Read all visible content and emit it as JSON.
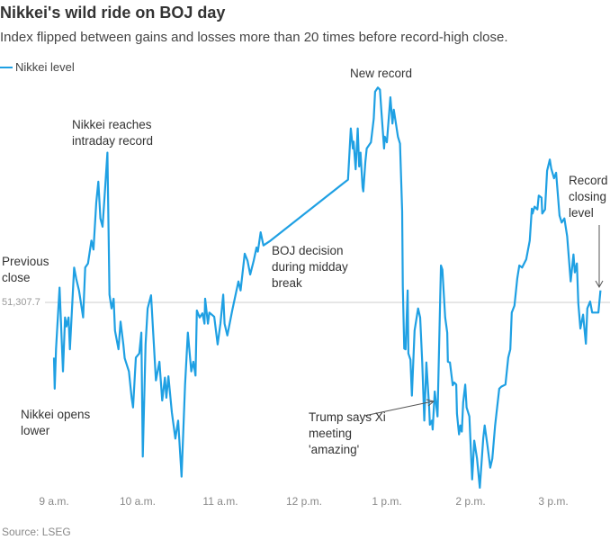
{
  "header": {
    "title": "Nikkei's wild ride on BOJ day",
    "subtitle": "Index flipped between gains and losses more than 20 times before record-high close."
  },
  "legend": {
    "label": "Nikkei level",
    "color": "#1fa0e3"
  },
  "footer": {
    "source": "Source: LSEG"
  },
  "annotations": {
    "new_record": [
      "New record"
    ],
    "intraday_record": [
      "Nikkei reaches",
      "intraday record"
    ],
    "previous_close": [
      "Previous",
      "close"
    ],
    "opens_lower": [
      "Nikkei opens",
      "lower"
    ],
    "boj_decision": [
      "BOJ decision",
      "during midday",
      "break"
    ],
    "trump_xi": [
      "Trump says Xi",
      "meeting",
      "'amazing'"
    ],
    "record_close": [
      "Record",
      "closing",
      "level"
    ]
  },
  "chart_data": {
    "type": "line",
    "title": "Nikkei's wild ride on BOJ day",
    "subtitle": "Index flipped between gains and losses more than 20 times before record-high close.",
    "xlabel": "",
    "ylabel": "",
    "x_ticks": [
      "9 a.m.",
      "10 a.m.",
      "11 a.m.",
      "12 p.m.",
      "1 p.m.",
      "2 p.m.",
      "3 p.m."
    ],
    "x_range": [
      "9:00",
      "15:35"
    ],
    "ylim": [
      51000,
      51700
    ],
    "grid": false,
    "legend_position": "top-left",
    "reference_line": {
      "label": "51,307.7",
      "value": 51307.7,
      "name": "Previous close"
    },
    "series": [
      {
        "name": "Nikkei level",
        "color": "#1fa0e3",
        "points": [
          [
            "9:00:00",
            51228
          ],
          [
            "9:00:30",
            51183
          ],
          [
            "9:01:30",
            51241
          ],
          [
            "9:04:00",
            51329
          ],
          [
            "9:06:30",
            51208
          ],
          [
            "9:08:00",
            51286
          ],
          [
            "9:09:00",
            51273
          ],
          [
            "9:10:30",
            51286
          ],
          [
            "9:11:30",
            51240
          ],
          [
            "9:14:30",
            51358
          ],
          [
            "9:16:00",
            51342
          ],
          [
            "9:18:00",
            51325
          ],
          [
            "9:21:00",
            51286
          ],
          [
            "9:22:30",
            51358
          ],
          [
            "9:24:30",
            51364
          ],
          [
            "9:27:00",
            51397
          ],
          [
            "9:28:30",
            51384
          ],
          [
            "9:30:30",
            51452
          ],
          [
            "9:32:00",
            51482
          ],
          [
            "9:33:30",
            51429
          ],
          [
            "9:35:00",
            51417
          ],
          [
            "9:36:30",
            51462
          ],
          [
            "9:38:30",
            51524
          ],
          [
            "9:40:00",
            51319
          ],
          [
            "9:41:30",
            51299
          ],
          [
            "9:43:00",
            51313
          ],
          [
            "9:44:00",
            51267
          ],
          [
            "9:46:30",
            51240
          ],
          [
            "9:48:00",
            51280
          ],
          [
            "9:50:00",
            51247
          ],
          [
            "9:51:00",
            51227
          ],
          [
            "9:54:00",
            51208
          ],
          [
            "9:56:00",
            51170
          ],
          [
            "9:57:00",
            51156
          ],
          [
            "9:59:00",
            51228
          ],
          [
            "10:01:30",
            51234
          ],
          [
            "10:03:00",
            51264
          ],
          [
            "10:04:00",
            51085
          ],
          [
            "10:06:00",
            51247
          ],
          [
            "10:07:30",
            51299
          ],
          [
            "10:10:00",
            51318
          ],
          [
            "10:13:30",
            51195
          ],
          [
            "10:16:00",
            51222
          ],
          [
            "10:18:00",
            51166
          ],
          [
            "10:20:00",
            51199
          ],
          [
            "10:21:00",
            51170
          ],
          [
            "10:22:30",
            51201
          ],
          [
            "10:25:00",
            51149
          ],
          [
            "10:27:30",
            51111
          ],
          [
            "10:29:30",
            51137
          ],
          [
            "10:32:00",
            51056
          ],
          [
            "10:34:30",
            51189
          ],
          [
            "10:36:30",
            51264
          ],
          [
            "10:39:00",
            51208
          ],
          [
            "10:40:30",
            51222
          ],
          [
            "10:42:00",
            51202
          ],
          [
            "10:43:00",
            51296
          ],
          [
            "10:45:00",
            51286
          ],
          [
            "10:47:00",
            51292
          ],
          [
            "10:48:30",
            51277
          ],
          [
            "10:49:00",
            51313
          ],
          [
            "10:51:00",
            51277
          ],
          [
            "10:52:00",
            51293
          ],
          [
            "10:55:30",
            51287
          ],
          [
            "10:58:00",
            51247
          ],
          [
            "11:00:00",
            51277
          ],
          [
            "11:02:00",
            51319
          ],
          [
            "11:03:00",
            51277
          ],
          [
            "11:05:00",
            51260
          ],
          [
            "11:08:30",
            51296
          ],
          [
            "11:13:00",
            51338
          ],
          [
            "11:14:30",
            51325
          ],
          [
            "11:17:30",
            51378
          ],
          [
            "11:19:30",
            51368
          ],
          [
            "11:21:30",
            51348
          ],
          [
            "11:24:00",
            51368
          ],
          [
            "11:26:00",
            51387
          ],
          [
            "11:27:00",
            51381
          ],
          [
            "11:29:00",
            51409
          ],
          [
            "11:31:00",
            51390
          ],
          [
            "11:35:30",
            51396
          ],
          [
            "12:27:30",
            51478
          ],
          [
            "12:32:00",
            51485
          ],
          [
            "12:34:00",
            51559
          ],
          [
            "12:35:30",
            51530
          ],
          [
            "12:36:00",
            51540
          ],
          [
            "12:37:30",
            51500
          ],
          [
            "12:39:00",
            51559
          ],
          [
            "12:40:00",
            51504
          ],
          [
            "12:41:00",
            51524
          ],
          [
            "12:42:30",
            51474
          ],
          [
            "12:43:00",
            51468
          ],
          [
            "12:44:30",
            51511
          ],
          [
            "12:45:30",
            51530
          ],
          [
            "12:48:30",
            51539
          ],
          [
            "12:50:30",
            51573
          ],
          [
            "12:51:30",
            51612
          ],
          [
            "12:53:30",
            51618
          ],
          [
            "12:55:00",
            51615
          ],
          [
            "12:56:00",
            51586
          ],
          [
            "12:58:00",
            51530
          ],
          [
            "12:58:30",
            51547
          ],
          [
            "13:00:00",
            51539
          ],
          [
            "13:02:30",
            51604
          ],
          [
            "13:04:00",
            51566
          ],
          [
            "13:05:00",
            51586
          ],
          [
            "13:08:00",
            51547
          ],
          [
            "13:09:30",
            51537
          ],
          [
            "13:11:00",
            51439
          ],
          [
            "13:11:30",
            51331
          ],
          [
            "13:12:30",
            51241
          ],
          [
            "13:13:30",
            51240
          ],
          [
            "13:15:00",
            51325
          ],
          [
            "13:15:30",
            51234
          ],
          [
            "13:17:00",
            51225
          ],
          [
            "13:18:00",
            51173
          ],
          [
            "13:20:00",
            51267
          ],
          [
            "13:22:30",
            51299
          ],
          [
            "13:24:00",
            51286
          ],
          [
            "13:25:30",
            51221
          ],
          [
            "13:27:00",
            51137
          ],
          [
            "13:28:30",
            51221
          ],
          [
            "13:30:30",
            51156
          ],
          [
            "13:31:00",
            51131
          ],
          [
            "13:32:30",
            51137
          ],
          [
            "13:33:00",
            51124
          ],
          [
            "13:34:30",
            51179
          ],
          [
            "13:36:30",
            51143
          ],
          [
            "13:39:00",
            51361
          ],
          [
            "13:40:00",
            51355
          ],
          [
            "13:42:00",
            51286
          ],
          [
            "13:43:30",
            51264
          ],
          [
            "13:44:00",
            51222
          ],
          [
            "13:45:30",
            51221
          ],
          [
            "13:47:30",
            51188
          ],
          [
            "13:48:30",
            51192
          ],
          [
            "13:50:00",
            51189
          ],
          [
            "13:50:30",
            51147
          ],
          [
            "13:52:00",
            51117
          ],
          [
            "13:53:00",
            51130
          ],
          [
            "13:54:00",
            51121
          ],
          [
            "13:55:00",
            51163
          ],
          [
            "13:56:30",
            51189
          ],
          [
            "13:57:30",
            51156
          ],
          [
            "13:59:30",
            51143
          ],
          [
            "14:01:30",
            51052
          ],
          [
            "14:03:00",
            51108
          ],
          [
            "14:05:00",
            51082
          ],
          [
            "14:07:00",
            51040
          ],
          [
            "14:09:30",
            51111
          ],
          [
            "14:10:30",
            51130
          ],
          [
            "14:12:30",
            51101
          ],
          [
            "14:14:30",
            51069
          ],
          [
            "14:16:00",
            51082
          ],
          [
            "14:18:00",
            51130
          ],
          [
            "14:21:00",
            51183
          ],
          [
            "14:22:30",
            51186
          ],
          [
            "14:25:30",
            51189
          ],
          [
            "14:27:30",
            51228
          ],
          [
            "14:29:00",
            51240
          ],
          [
            "14:30:00",
            51293
          ],
          [
            "14:32:00",
            51303
          ],
          [
            "14:34:00",
            51342
          ],
          [
            "14:35:30",
            51361
          ],
          [
            "14:37:30",
            51358
          ],
          [
            "14:40:30",
            51370
          ],
          [
            "14:43:00",
            51397
          ],
          [
            "14:44:30",
            51443
          ],
          [
            "14:45:00",
            51436
          ],
          [
            "14:46:30",
            51446
          ],
          [
            "14:48:30",
            51442
          ],
          [
            "14:49:30",
            51462
          ],
          [
            "14:51:30",
            51459
          ],
          [
            "14:52:00",
            51436
          ],
          [
            "14:54:00",
            51442
          ],
          [
            "14:55:30",
            51498
          ],
          [
            "14:57:30",
            51514
          ],
          [
            "14:58:30",
            51501
          ],
          [
            "15:00:30",
            51487
          ],
          [
            "15:02:00",
            51495
          ],
          [
            "15:04:30",
            51433
          ],
          [
            "15:06:00",
            51423
          ],
          [
            "15:08:00",
            51429
          ],
          [
            "15:10:00",
            51403
          ],
          [
            "15:12:30",
            51338
          ],
          [
            "15:14:30",
            51377
          ],
          [
            "15:15:30",
            51351
          ],
          [
            "15:17:00",
            51364
          ],
          [
            "15:18:00",
            51306
          ],
          [
            "15:19:30",
            51270
          ],
          [
            "15:21:30",
            51290
          ],
          [
            "15:23:30",
            51248
          ],
          [
            "15:24:30",
            51299
          ],
          [
            "15:26:30",
            51309
          ],
          [
            "15:28:00",
            51293
          ],
          [
            "15:32:30",
            51293
          ],
          [
            "15:34:00",
            51325
          ]
        ]
      }
    ]
  }
}
